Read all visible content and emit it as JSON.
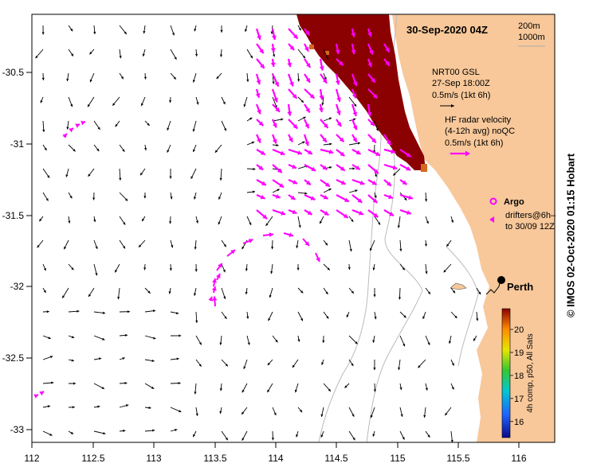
{
  "map": {
    "title": "30-Sep-2020 04Z",
    "x_ticks": [
      "112",
      "112.5",
      "113",
      "113.5",
      "114",
      "114.5",
      "115",
      "115.5",
      "116"
    ],
    "y_ticks": [
      "-30.5",
      "-31",
      "-31.5",
      "-32",
      "-32.5",
      "-33"
    ],
    "lon_range": [
      112,
      116.3
    ],
    "lat_range": [
      -33.1,
      -30.1
    ],
    "depth_legend": [
      "200m",
      "1000m"
    ],
    "glider_legend": {
      "line1": "NRT00 GSL",
      "line2": "27-Sep 18:00Z",
      "line3": "0.5m/s (1kt 6h)"
    },
    "radar_legend": {
      "line1": "HF radar velocity",
      "line2": "(4-12h avg) noQC",
      "line3": "0.5m/s (1kt 6h)"
    },
    "argo_label": "Argo",
    "drifter_label": {
      "line1": "drifters@6h–",
      "line2": "to 30/09 12Z"
    },
    "city_label": "Perth",
    "colorbar": {
      "title": "4h comp, p50, All Sats",
      "ticks": [
        "16",
        "17",
        "18",
        "19",
        "20"
      ],
      "range": [
        15.3,
        20.9
      ]
    },
    "credit": "©  IMOS 02-Oct-2020 01:15 Hobart",
    "colors": {
      "land": "#f8c89a",
      "sst_patch": "#8b0000",
      "radar_arrows": "#ff00ff",
      "bathymetry": "#bbbbbb"
    }
  }
}
